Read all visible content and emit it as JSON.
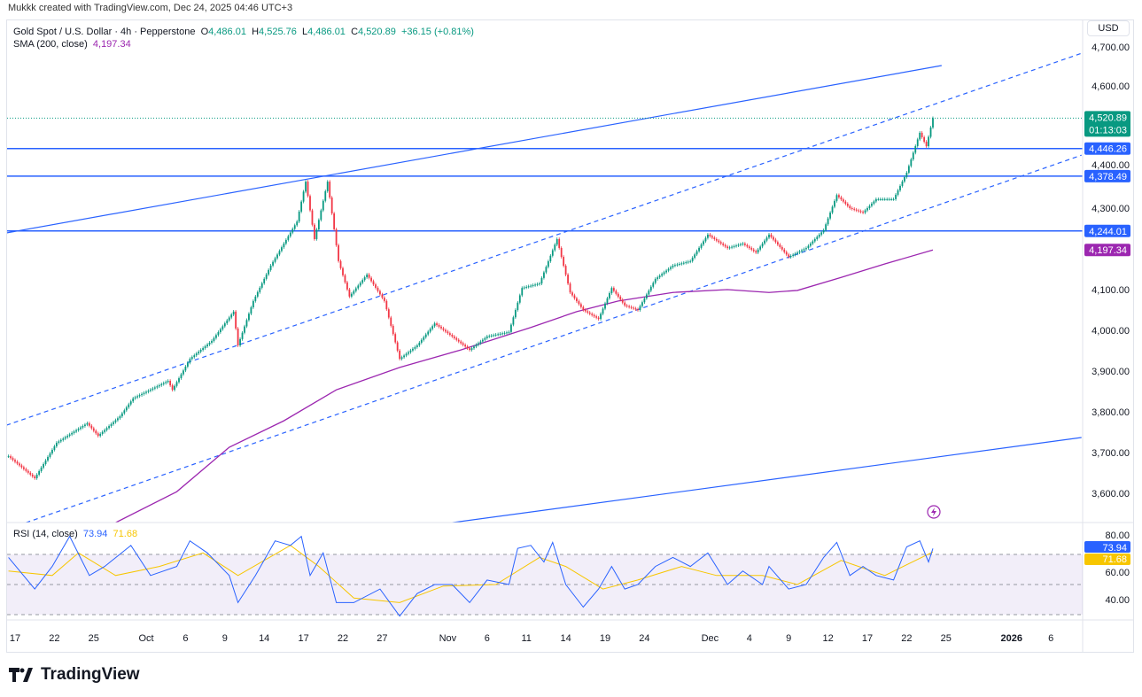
{
  "header": {
    "credit": "Mukkk created with TradingView.com, Dec 24, 2025 04:46 UTC+3"
  },
  "legend": {
    "symbol": "Gold Spot / U.S. Dollar · 4h · Pepperstone",
    "o_label": "O",
    "o": "4,486.01",
    "h_label": "H",
    "h": "4,525.76",
    "l_label": "L",
    "l": "4,486.01",
    "c_label": "C",
    "c": "4,520.89",
    "change": "+36.15 (+0.81%)",
    "sma_label": "SMA (200, close)",
    "sma": "4,197.34"
  },
  "rsi_legend": {
    "label": "RSI (14, close)",
    "rsi": "73.94",
    "signal": "71.68"
  },
  "currency": "USD",
  "brand": "TradingView",
  "colors": {
    "up": "#089981",
    "down": "#f23645",
    "lines": "#2962ff",
    "sma": "#9c27b0",
    "rsi": "#2962ff",
    "signal": "#f7c600",
    "rsi_band": "#7e57c2"
  },
  "chart_data": [
    {
      "type": "candlestick",
      "ylim": [
        3530,
        4720
      ],
      "price_ticks": [
        "4,700.00",
        "4,600.00",
        "4,400.00",
        "4,300.00",
        "4,100.00",
        "4,000.00",
        "3,900.00",
        "3,800.00",
        "3,700.00",
        "3,600.00"
      ],
      "x_ticks": [
        "17",
        "22",
        "25",
        "Oct",
        "6",
        "9",
        "14",
        "17",
        "22",
        "27",
        "Nov",
        "6",
        "11",
        "14",
        "19",
        "24",
        "Dec",
        "4",
        "9",
        "12",
        "17",
        "22",
        "25",
        "2026",
        "6"
      ],
      "x_tick_dates": [
        "2025-09-17",
        "2025-09-22",
        "2025-09-25",
        "2025-10-01",
        "2025-10-06",
        "2025-10-09",
        "2025-10-14",
        "2025-10-17",
        "2025-10-22",
        "2025-10-27",
        "2025-11-03",
        "2025-11-06",
        "2025-11-11",
        "2025-11-14",
        "2025-11-19",
        "2025-11-24",
        "2025-12-01",
        "2025-12-04",
        "2025-12-09",
        "2025-12-12",
        "2025-12-17",
        "2025-12-22",
        "2025-12-25",
        "2026-01-01",
        "2026-01-06"
      ],
      "close_path": [
        [
          "2025-09-16 12:00",
          3691
        ],
        [
          "2025-09-18 12:00",
          3637
        ],
        [
          "2025-09-22 04:00",
          3724
        ],
        [
          "2025-09-24 12:00",
          3772
        ],
        [
          "2025-09-25 08:00",
          3741
        ],
        [
          "2025-09-29 00:00",
          3789
        ],
        [
          "2025-09-30 00:00",
          3833
        ],
        [
          "2025-10-02 16:00",
          3876
        ],
        [
          "2025-10-03 00:00",
          3854
        ],
        [
          "2025-10-06 08:00",
          3930
        ],
        [
          "2025-10-08 00:00",
          3974
        ],
        [
          "2025-10-09 16:00",
          4046
        ],
        [
          "2025-10-10 00:00",
          3963
        ],
        [
          "2025-10-13 04:00",
          4072
        ],
        [
          "2025-10-14 12:00",
          4159
        ],
        [
          "2025-10-15 12:00",
          4213
        ],
        [
          "2025-10-16 12:00",
          4267
        ],
        [
          "2025-10-17 04:00",
          4365
        ],
        [
          "2025-10-17 20:00",
          4224
        ],
        [
          "2025-10-20 20:00",
          4365
        ],
        [
          "2025-10-21 16:00",
          4170
        ],
        [
          "2025-10-22 12:00",
          4083
        ],
        [
          "2025-10-23 20:00",
          4137
        ],
        [
          "2025-10-27 04:00",
          4072
        ],
        [
          "2025-10-28 08:00",
          3930
        ],
        [
          "2025-10-29 16:00",
          3963
        ],
        [
          "2025-10-31 00:00",
          4017
        ],
        [
          "2025-11-03 08:00",
          3985
        ],
        [
          "2025-11-04 16:00",
          3952
        ],
        [
          "2025-11-06 00:00",
          3985
        ],
        [
          "2025-11-07 16:00",
          3996
        ],
        [
          "2025-11-10 16:00",
          4104
        ],
        [
          "2025-11-12 00:00",
          4115
        ],
        [
          "2025-11-13 08:00",
          4224
        ],
        [
          "2025-11-14 08:00",
          4093
        ],
        [
          "2025-11-17 08:00",
          4050
        ],
        [
          "2025-11-18 12:00",
          4028
        ],
        [
          "2025-11-19 12:00",
          4104
        ],
        [
          "2025-11-20 12:00",
          4061
        ],
        [
          "2025-11-21 12:00",
          4050
        ],
        [
          "2025-11-24 20:00",
          4126
        ],
        [
          "2025-11-26 04:00",
          4159
        ],
        [
          "2025-11-27 12:00",
          4170
        ],
        [
          "2025-11-28 20:00",
          4235
        ],
        [
          "2025-12-02 08:00",
          4202
        ],
        [
          "2025-12-03 12:00",
          4213
        ],
        [
          "2025-12-04 12:00",
          4191
        ],
        [
          "2025-12-05 12:00",
          4235
        ],
        [
          "2025-12-09 00:00",
          4180
        ],
        [
          "2025-12-10 08:00",
          4202
        ],
        [
          "2025-12-11 16:00",
          4246
        ],
        [
          "2025-12-12 16:00",
          4332
        ],
        [
          "2025-12-15 16:00",
          4300
        ],
        [
          "2025-12-16 16:00",
          4289
        ],
        [
          "2025-12-17 16:00",
          4322
        ],
        [
          "2025-12-19 00:00",
          4322
        ],
        [
          "2025-12-22 00:00",
          4387
        ],
        [
          "2025-12-23 00:00",
          4485
        ],
        [
          "2025-12-23 12:00",
          4452
        ],
        [
          "2025-12-24 00:00",
          4520.89
        ]
      ],
      "sma200": [
        [
          "2025-09-26 16:00",
          3528
        ],
        [
          "2025-10-03 08:00",
          3604
        ],
        [
          "2025-10-09 08:00",
          3713
        ],
        [
          "2025-10-15 12:00",
          3778
        ],
        [
          "2025-10-21 12:00",
          3854
        ],
        [
          "2025-10-28 08:00",
          3909
        ],
        [
          "2025-11-04 00:00",
          3952
        ],
        [
          "2025-11-11 08:00",
          4007
        ],
        [
          "2025-11-14 20:00",
          4046
        ],
        [
          "2025-11-20 00:00",
          4072
        ],
        [
          "2025-11-26 04:00",
          4093
        ],
        [
          "2025-12-02 08:00",
          4100
        ],
        [
          "2025-12-05 12:00",
          4093
        ],
        [
          "2025-12-09 16:00",
          4098
        ],
        [
          "2025-12-15 00:00",
          4130
        ],
        [
          "2025-12-18 08:00",
          4163
        ],
        [
          "2025-12-24 00:00",
          4197.34
        ]
      ],
      "horizontal_levels": [
        {
          "value": 4446.26,
          "label": "4,446.26"
        },
        {
          "value": 4378.49,
          "label": "4,378.49"
        },
        {
          "value": 4244.01,
          "label": "4,244.01"
        }
      ],
      "trendlines": [
        {
          "style": "solid",
          "from": [
            "2025-09-16 08:00",
            4239
          ],
          "to": [
            "2025-12-24 16:00",
            4650
          ]
        },
        {
          "style": "solid",
          "from": [
            "2025-11-03 08:00",
            3528
          ],
          "to": [
            "2026-01-08 08:00",
            3737
          ]
        },
        {
          "style": "dashed",
          "from": [
            "2025-09-16 08:00",
            3767
          ],
          "to": [
            "2026-01-08 08:00",
            4680
          ]
        },
        {
          "style": "dashed",
          "from": [
            "2025-09-17 20:00",
            3528
          ],
          "to": [
            "2026-01-08 08:00",
            4430
          ]
        }
      ],
      "last_price": {
        "value": 4520.89,
        "label": "4,520.89",
        "countdown": "01:13:03"
      },
      "sma_label": {
        "value": 4197.34,
        "label": "4,197.34"
      }
    },
    {
      "type": "line",
      "title": "RSI (14, close)",
      "ylim": [
        22,
        88
      ],
      "ticks": [
        "80.00",
        "60.00",
        "40.00"
      ],
      "band": [
        30,
        70
      ],
      "rsi": [
        [
          "2025-09-16 12:00",
          68
        ],
        [
          "2025-09-18 12:00",
          47
        ],
        [
          "2025-09-19 20:00",
          62
        ],
        [
          "2025-09-23 04:00",
          82
        ],
        [
          "2025-09-24 16:00",
          56
        ],
        [
          "2025-09-25 20:00",
          62
        ],
        [
          "2025-09-29 20:00",
          76
        ],
        [
          "2025-10-01 08:00",
          56
        ],
        [
          "2025-10-03 08:00",
          62
        ],
        [
          "2025-10-06 08:00",
          79
        ],
        [
          "2025-10-07 16:00",
          71
        ],
        [
          "2025-10-09 08:00",
          56
        ],
        [
          "2025-10-10 00:00",
          38
        ],
        [
          "2025-10-13 08:00",
          56
        ],
        [
          "2025-10-14 20:00",
          79
        ],
        [
          "2025-10-16 00:00",
          76
        ],
        [
          "2025-10-16 20:00",
          82
        ],
        [
          "2025-10-17 12:00",
          56
        ],
        [
          "2025-10-20 12:00",
          71
        ],
        [
          "2025-10-21 12:00",
          38
        ],
        [
          "2025-10-22 20:00",
          38
        ],
        [
          "2025-10-24 20:00",
          47
        ],
        [
          "2025-10-28 08:00",
          29
        ],
        [
          "2025-10-29 16:00",
          44
        ],
        [
          "2025-10-31 00:00",
          50
        ],
        [
          "2025-11-03 08:00",
          50
        ],
        [
          "2025-11-04 16:00",
          38
        ],
        [
          "2025-11-06 00:00",
          53
        ],
        [
          "2025-11-07 16:00",
          50
        ],
        [
          "2025-11-10 08:00",
          74
        ],
        [
          "2025-11-11 08:00",
          76
        ],
        [
          "2025-11-12 08:00",
          65
        ],
        [
          "2025-11-13 00:00",
          78
        ],
        [
          "2025-11-14 00:00",
          50
        ],
        [
          "2025-11-17 08:00",
          35
        ],
        [
          "2025-11-18 12:00",
          47
        ],
        [
          "2025-11-19 12:00",
          62
        ],
        [
          "2025-11-20 12:00",
          47
        ],
        [
          "2025-11-21 12:00",
          50
        ],
        [
          "2025-11-24 20:00",
          62
        ],
        [
          "2025-11-26 04:00",
          68
        ],
        [
          "2025-11-27 12:00",
          62
        ],
        [
          "2025-11-28 20:00",
          71
        ],
        [
          "2025-12-02 08:00",
          50
        ],
        [
          "2025-12-03 12:00",
          59
        ],
        [
          "2025-12-05 00:00",
          50
        ],
        [
          "2025-12-05 12:00",
          62
        ],
        [
          "2025-12-09 00:00",
          47
        ],
        [
          "2025-12-10 08:00",
          50
        ],
        [
          "2025-12-11 16:00",
          68
        ],
        [
          "2025-12-12 16:00",
          78
        ],
        [
          "2025-12-15 16:00",
          56
        ],
        [
          "2025-12-16 16:00",
          62
        ],
        [
          "2025-12-17 16:00",
          56
        ],
        [
          "2025-12-19 00:00",
          53
        ],
        [
          "2025-12-22 00:00",
          75
        ],
        [
          "2025-12-23 00:00",
          79
        ],
        [
          "2025-12-23 16:00",
          65
        ],
        [
          "2025-12-24 00:00",
          73.94
        ]
      ],
      "signal": [
        [
          "2025-09-16 12:00",
          59
        ],
        [
          "2025-09-19 20:00",
          56
        ],
        [
          "2025-09-23 20:00",
          71
        ],
        [
          "2025-09-26 16:00",
          56
        ],
        [
          "2025-10-02 00:00",
          62
        ],
        [
          "2025-10-07 08:00",
          71
        ],
        [
          "2025-10-10 00:00",
          56
        ],
        [
          "2025-10-16 00:00",
          76
        ],
        [
          "2025-10-20 04:00",
          62
        ],
        [
          "2025-10-22 20:00",
          41
        ],
        [
          "2025-10-28 08:00",
          38
        ],
        [
          "2025-10-31 16:00",
          49
        ],
        [
          "2025-11-06 16:00",
          50
        ],
        [
          "2025-11-12 00:00",
          68
        ],
        [
          "2025-11-14 00:00",
          62
        ],
        [
          "2025-11-18 20:00",
          47
        ],
        [
          "2025-11-21 12:00",
          53
        ],
        [
          "2025-11-26 20:00",
          62
        ],
        [
          "2025-12-01 12:00",
          56
        ],
        [
          "2025-12-05 00:00",
          56
        ],
        [
          "2025-12-09 16:00",
          50
        ],
        [
          "2025-12-15 00:00",
          66
        ],
        [
          "2025-12-18 08:00",
          56
        ],
        [
          "2025-12-24 00:00",
          71.68
        ]
      ]
    }
  ]
}
